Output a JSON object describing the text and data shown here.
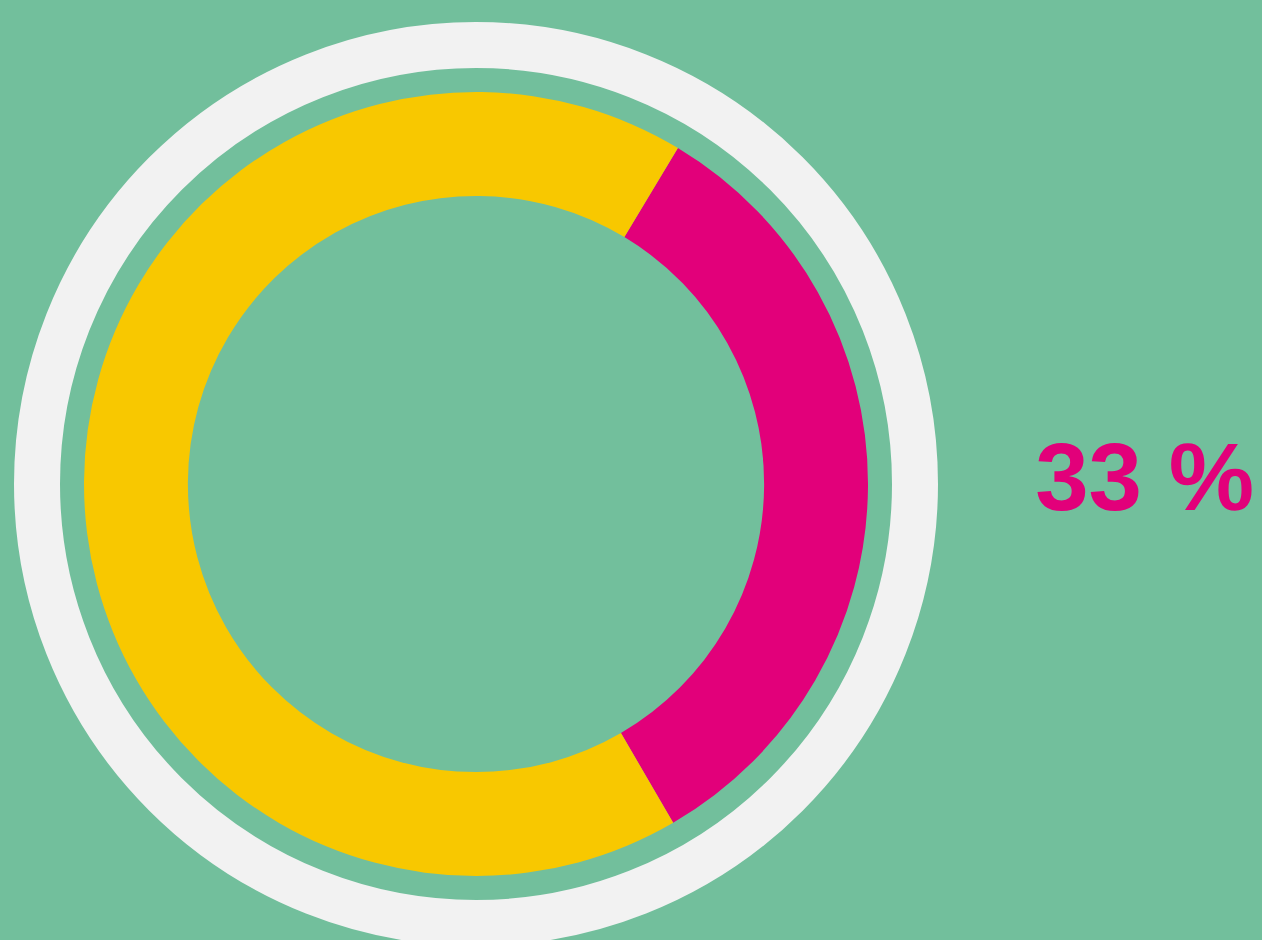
{
  "chart_data": {
    "type": "donut",
    "categories": [
      null,
      null
    ],
    "values": [
      33,
      67
    ],
    "colors": [
      "#e2007a",
      "#f8c800"
    ],
    "value_labels": [
      "33 %",
      null
    ],
    "legend": false
  }
}
